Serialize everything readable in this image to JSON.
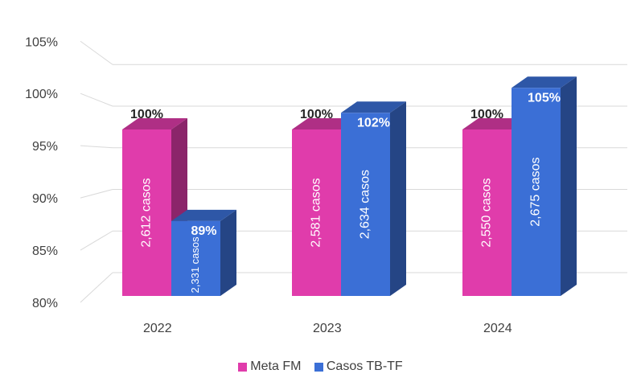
{
  "chart_data": {
    "type": "bar",
    "categories": [
      "2022",
      "2023",
      "2024"
    ],
    "series": [
      {
        "name": "Meta FM",
        "values": [
          100,
          100,
          100
        ],
        "value_labels": [
          "100%",
          "100%",
          "100%"
        ],
        "case_labels": [
          "2,612 casos",
          "2,581 casos",
          "2,550 casos"
        ],
        "color": "#E03CAB"
      },
      {
        "name": "Casos TB-TF",
        "values": [
          89,
          102,
          105
        ],
        "value_labels": [
          "89%",
          "102%",
          "105%"
        ],
        "case_labels": [
          "2,331 casos",
          "2,634 casos",
          "2,675 casos"
        ],
        "color": "#3B6FD6"
      }
    ],
    "y_ticks": [
      "80%",
      "85%",
      "90%",
      "95%",
      "100%",
      "105%"
    ],
    "ylim": [
      80,
      105
    ],
    "grid": true,
    "legend_position": "bottom",
    "title": "",
    "xlabel": "",
    "ylabel": ""
  }
}
